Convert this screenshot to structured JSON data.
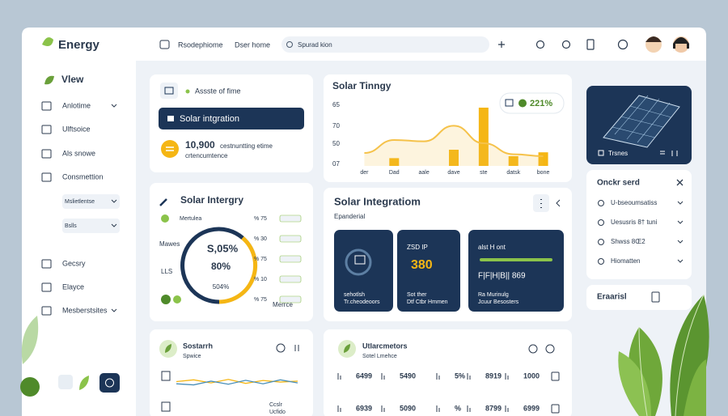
{
  "sidebar": {
    "brand": "Energy",
    "section": "Vlew",
    "items": [
      "Anlotime",
      "Ulftsoice",
      "Als snowe",
      "Consmettion",
      "Mslietlentse",
      "Bslls",
      "Gecsry",
      "Elayce",
      "Mesberstsites"
    ]
  },
  "topbar": {
    "links": [
      "Rsodephiome",
      "Dser home"
    ],
    "search": "Spurad kion"
  },
  "card_status": {
    "title": "Assste of fime",
    "button": "Solar intgration",
    "amount": "10,900",
    "amount_note": "cestnuntting etime",
    "sub": "crtencumtence"
  },
  "chart_data": {
    "type": "bar",
    "title": "Solar Tinngy",
    "badge": "221%",
    "categories": [
      "der",
      "Dad",
      "aale",
      "dave",
      "ste",
      "datsk",
      "bone"
    ],
    "axis_labels": [
      "65",
      "70",
      "50",
      "07"
    ],
    "ylim": [
      0,
      100
    ],
    "values": [
      null,
      12,
      null,
      25,
      90,
      15,
      21
    ],
    "color": "#f5b614",
    "line_values": [
      20,
      40,
      38,
      62,
      35,
      18,
      15
    ],
    "line_color": "#f5c24a"
  },
  "gauge_card": {
    "title": "Solar Intergry",
    "labels": [
      "Mertulea",
      "Mawes",
      "LLS",
      "Merrce"
    ],
    "readouts": [
      "S,05%",
      "80%",
      "504%"
    ],
    "rows": [
      "% 75",
      "% 30",
      "% 75",
      "% 10",
      "% 75"
    ]
  },
  "integration": {
    "title": "Solar Integratiom",
    "sub": "Epanderial",
    "tiles": [
      {
        "lines": [
          "sehotlsh",
          "Tr.cheodeoors"
        ]
      },
      {
        "top": "ZSD IP",
        "value": "380",
        "lines": [
          "Sot ther",
          "Dtf Ctbr Hmmen"
        ]
      },
      {
        "top": "alst H ont",
        "value": "F|F|H|B|| 869",
        "lines": [
          "Ra Murinulg",
          "Jcuur Besosters"
        ]
      }
    ]
  },
  "right_panel": {
    "panel_label": "Trsnes",
    "list_title": "Onckr serd",
    "items": [
      "U-bseoumsatiss",
      "Uesusris 8† tuni",
      "Shwss 8Œ2",
      "Hiomatten"
    ],
    "footer": "Eraarisl"
  },
  "bottom_left": {
    "title": "Sostarrh",
    "sub": "Spwice",
    "legend": [
      "Ccslr",
      "Ucfido"
    ],
    "series": [
      {
        "color": "#f5b614",
        "values": [
          50,
          58,
          44,
          60,
          42,
          55,
          48,
          52
        ]
      },
      {
        "color": "#4a8fb8",
        "values": [
          40,
          35,
          52,
          38,
          56,
          40,
          58,
          44
        ]
      }
    ]
  },
  "bottom_table": {
    "title": "Utlarcmetors",
    "sub": "Sotel Lmehce",
    "rows": [
      [
        "6499",
        "5490",
        "5%",
        "8919",
        "1000"
      ],
      [
        "6939",
        "5090",
        "%",
        "8799",
        "6999"
      ]
    ]
  }
}
